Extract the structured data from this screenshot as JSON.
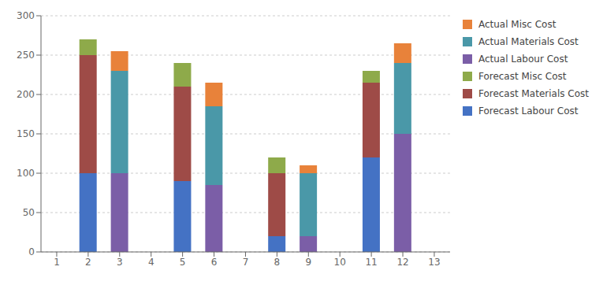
{
  "chart_data": {
    "type": "bar",
    "categories": [
      1,
      2,
      3,
      4,
      5,
      6,
      7,
      8,
      9,
      10,
      11,
      12,
      13
    ],
    "series": [
      {
        "name": "Forecast Labour Cost",
        "color": "#4472c4",
        "values": [
          null,
          100,
          null,
          null,
          90,
          null,
          null,
          20,
          null,
          null,
          120,
          null,
          null
        ]
      },
      {
        "name": "Forecast Materials Cost",
        "color": "#9e4b47",
        "values": [
          null,
          150,
          null,
          null,
          120,
          null,
          null,
          80,
          null,
          null,
          95,
          null,
          null
        ]
      },
      {
        "name": "Forecast Misc Cost",
        "color": "#8eaa4a",
        "values": [
          null,
          20,
          null,
          null,
          30,
          null,
          null,
          20,
          null,
          null,
          15,
          null,
          null
        ]
      },
      {
        "name": "Actual Labour Cost",
        "color": "#7b5ea7",
        "values": [
          null,
          null,
          100,
          null,
          null,
          85,
          null,
          null,
          20,
          null,
          null,
          150,
          null
        ]
      },
      {
        "name": "Actual Materials Cost",
        "color": "#4a98a8",
        "values": [
          null,
          null,
          130,
          null,
          null,
          100,
          null,
          null,
          80,
          null,
          null,
          90,
          null
        ]
      },
      {
        "name": "Actual Misc Cost",
        "color": "#e8823a",
        "values": [
          null,
          null,
          25,
          null,
          null,
          30,
          null,
          null,
          10,
          null,
          null,
          25,
          null
        ]
      }
    ],
    "ylim": [
      0,
      300
    ],
    "yticks": [
      0,
      50,
      100,
      150,
      200,
      250,
      300
    ],
    "grid": true,
    "stacked": true,
    "legend": "right"
  }
}
